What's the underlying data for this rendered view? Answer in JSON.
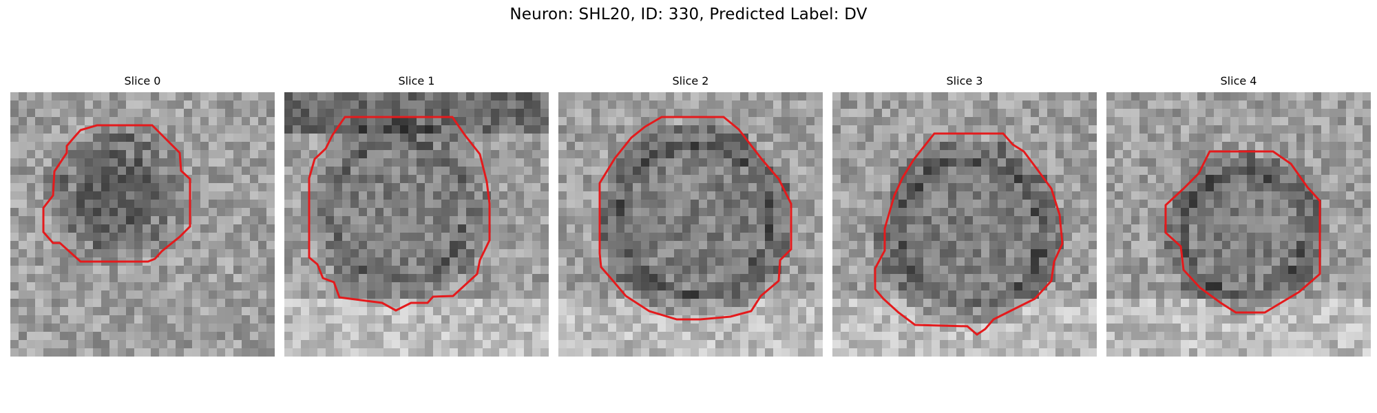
{
  "figure": {
    "title": "Neuron: SHL20, ID: 330, Predicted Label: DV"
  },
  "panels": [
    {
      "title": "Slice 0"
    },
    {
      "title": "Slice 1"
    },
    {
      "title": "Slice 2"
    },
    {
      "title": "Slice 3"
    },
    {
      "title": "Slice 4"
    }
  ],
  "colors": {
    "contour": "#e41a1c",
    "background": "#ffffff"
  }
}
